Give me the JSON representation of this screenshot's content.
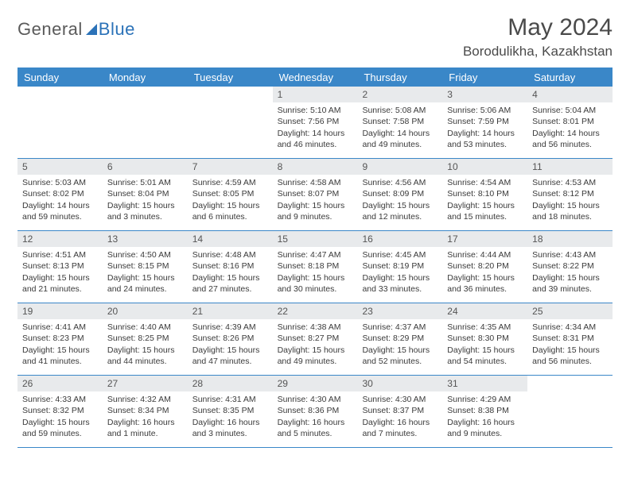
{
  "brand": {
    "text1": "General",
    "text2": "Blue"
  },
  "title": "May 2024",
  "location": "Borodulikha, Kazakhstan",
  "day_headers": [
    "Sunday",
    "Monday",
    "Tuesday",
    "Wednesday",
    "Thursday",
    "Friday",
    "Saturday"
  ],
  "colors": {
    "header_bg": "#3a87c8",
    "daynum_bg": "#e8eaec",
    "divider": "#3a87c8",
    "body_text": "#3a3a3a",
    "logo_blue": "#2b72b8"
  },
  "weeks": [
    [
      {
        "empty": true
      },
      {
        "empty": true
      },
      {
        "empty": true
      },
      {
        "n": "1",
        "sunrise": "5:10 AM",
        "sunset": "7:56 PM",
        "daylight": "14 hours and 46 minutes."
      },
      {
        "n": "2",
        "sunrise": "5:08 AM",
        "sunset": "7:58 PM",
        "daylight": "14 hours and 49 minutes."
      },
      {
        "n": "3",
        "sunrise": "5:06 AM",
        "sunset": "7:59 PM",
        "daylight": "14 hours and 53 minutes."
      },
      {
        "n": "4",
        "sunrise": "5:04 AM",
        "sunset": "8:01 PM",
        "daylight": "14 hours and 56 minutes."
      }
    ],
    [
      {
        "n": "5",
        "sunrise": "5:03 AM",
        "sunset": "8:02 PM",
        "daylight": "14 hours and 59 minutes."
      },
      {
        "n": "6",
        "sunrise": "5:01 AM",
        "sunset": "8:04 PM",
        "daylight": "15 hours and 3 minutes."
      },
      {
        "n": "7",
        "sunrise": "4:59 AM",
        "sunset": "8:05 PM",
        "daylight": "15 hours and 6 minutes."
      },
      {
        "n": "8",
        "sunrise": "4:58 AM",
        "sunset": "8:07 PM",
        "daylight": "15 hours and 9 minutes."
      },
      {
        "n": "9",
        "sunrise": "4:56 AM",
        "sunset": "8:09 PM",
        "daylight": "15 hours and 12 minutes."
      },
      {
        "n": "10",
        "sunrise": "4:54 AM",
        "sunset": "8:10 PM",
        "daylight": "15 hours and 15 minutes."
      },
      {
        "n": "11",
        "sunrise": "4:53 AM",
        "sunset": "8:12 PM",
        "daylight": "15 hours and 18 minutes."
      }
    ],
    [
      {
        "n": "12",
        "sunrise": "4:51 AM",
        "sunset": "8:13 PM",
        "daylight": "15 hours and 21 minutes."
      },
      {
        "n": "13",
        "sunrise": "4:50 AM",
        "sunset": "8:15 PM",
        "daylight": "15 hours and 24 minutes."
      },
      {
        "n": "14",
        "sunrise": "4:48 AM",
        "sunset": "8:16 PM",
        "daylight": "15 hours and 27 minutes."
      },
      {
        "n": "15",
        "sunrise": "4:47 AM",
        "sunset": "8:18 PM",
        "daylight": "15 hours and 30 minutes."
      },
      {
        "n": "16",
        "sunrise": "4:45 AM",
        "sunset": "8:19 PM",
        "daylight": "15 hours and 33 minutes."
      },
      {
        "n": "17",
        "sunrise": "4:44 AM",
        "sunset": "8:20 PM",
        "daylight": "15 hours and 36 minutes."
      },
      {
        "n": "18",
        "sunrise": "4:43 AM",
        "sunset": "8:22 PM",
        "daylight": "15 hours and 39 minutes."
      }
    ],
    [
      {
        "n": "19",
        "sunrise": "4:41 AM",
        "sunset": "8:23 PM",
        "daylight": "15 hours and 41 minutes."
      },
      {
        "n": "20",
        "sunrise": "4:40 AM",
        "sunset": "8:25 PM",
        "daylight": "15 hours and 44 minutes."
      },
      {
        "n": "21",
        "sunrise": "4:39 AM",
        "sunset": "8:26 PM",
        "daylight": "15 hours and 47 minutes."
      },
      {
        "n": "22",
        "sunrise": "4:38 AM",
        "sunset": "8:27 PM",
        "daylight": "15 hours and 49 minutes."
      },
      {
        "n": "23",
        "sunrise": "4:37 AM",
        "sunset": "8:29 PM",
        "daylight": "15 hours and 52 minutes."
      },
      {
        "n": "24",
        "sunrise": "4:35 AM",
        "sunset": "8:30 PM",
        "daylight": "15 hours and 54 minutes."
      },
      {
        "n": "25",
        "sunrise": "4:34 AM",
        "sunset": "8:31 PM",
        "daylight": "15 hours and 56 minutes."
      }
    ],
    [
      {
        "n": "26",
        "sunrise": "4:33 AM",
        "sunset": "8:32 PM",
        "daylight": "15 hours and 59 minutes."
      },
      {
        "n": "27",
        "sunrise": "4:32 AM",
        "sunset": "8:34 PM",
        "daylight": "16 hours and 1 minute."
      },
      {
        "n": "28",
        "sunrise": "4:31 AM",
        "sunset": "8:35 PM",
        "daylight": "16 hours and 3 minutes."
      },
      {
        "n": "29",
        "sunrise": "4:30 AM",
        "sunset": "8:36 PM",
        "daylight": "16 hours and 5 minutes."
      },
      {
        "n": "30",
        "sunrise": "4:30 AM",
        "sunset": "8:37 PM",
        "daylight": "16 hours and 7 minutes."
      },
      {
        "n": "31",
        "sunrise": "4:29 AM",
        "sunset": "8:38 PM",
        "daylight": "16 hours and 9 minutes."
      },
      {
        "empty": true
      }
    ]
  ],
  "labels": {
    "sunrise": "Sunrise: ",
    "sunset": "Sunset: ",
    "daylight": "Daylight: "
  }
}
